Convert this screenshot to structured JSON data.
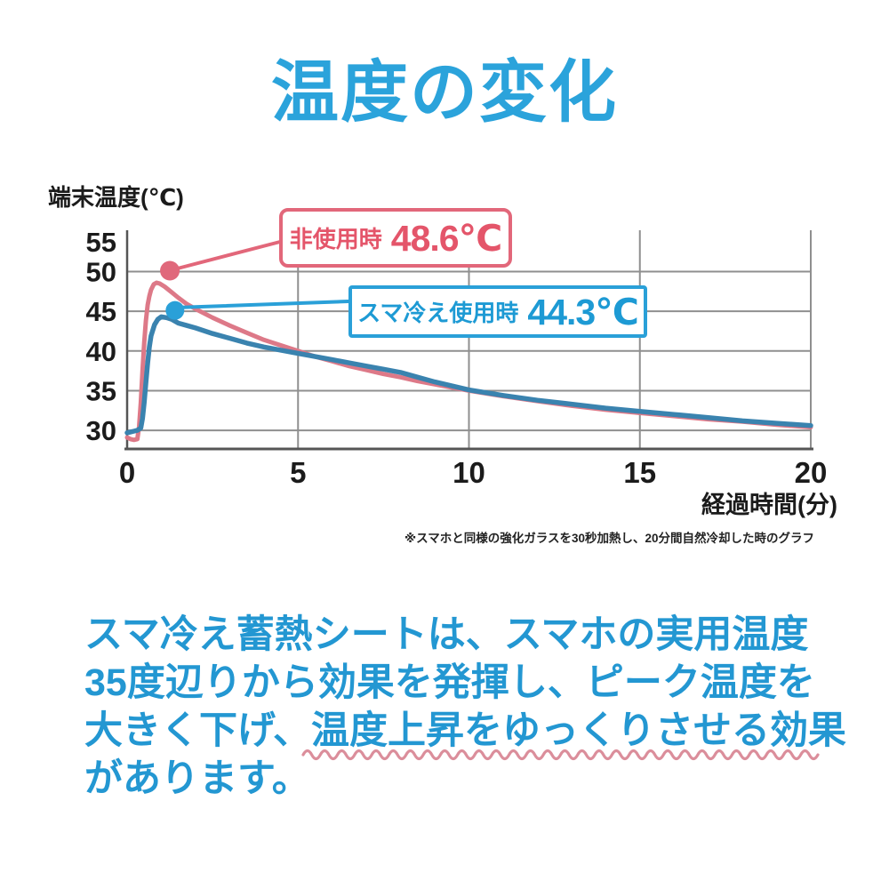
{
  "title": "温度の変化",
  "chart": {
    "y_axis_title": "端末温度(℃)",
    "x_axis_title": "経過時間(分)",
    "footnote": "※スマホと同様の強化ガラスを30秒加熱し、20分間自然冷却した時のグラフ",
    "callouts": [
      {
        "label": "非使用時",
        "value": "48.6℃",
        "color": "#e4556a"
      },
      {
        "label": "スマ冷え使用時",
        "value": "44.3℃",
        "color": "#1d9ad4"
      }
    ]
  },
  "chart_data": {
    "type": "line",
    "title": "温度の変化",
    "xlabel": "経過時間(分)",
    "ylabel": "端末温度(℃)",
    "xlim": [
      0,
      20
    ],
    "ylim": [
      27.9,
      55
    ],
    "x_ticks": [
      0,
      5,
      10,
      15,
      20
    ],
    "y_ticks": [
      55,
      50,
      45,
      40,
      35,
      30
    ],
    "grid": true,
    "legend_position": "callouts-inside-plot",
    "series": [
      {
        "name": "非使用時",
        "peak_label": "48.6℃",
        "peak": 48.6,
        "color": "#dd7988",
        "marker_at": {
          "t": 1.25,
          "temp": 50
        },
        "points": [
          [
            0,
            29.1
          ],
          [
            0.1,
            28.9
          ],
          [
            0.2,
            28.8
          ],
          [
            0.3,
            28.9
          ],
          [
            0.35,
            30.5
          ],
          [
            0.4,
            33.5
          ],
          [
            0.45,
            37.5
          ],
          [
            0.5,
            41
          ],
          [
            0.55,
            43.8
          ],
          [
            0.6,
            45.8
          ],
          [
            0.65,
            46.9
          ],
          [
            0.7,
            47.7
          ],
          [
            0.78,
            48.4
          ],
          [
            0.86,
            48.6
          ],
          [
            0.95,
            48.5
          ],
          [
            1.1,
            48.1
          ],
          [
            1.3,
            47.4
          ],
          [
            1.5,
            46.7
          ],
          [
            1.75,
            45.9
          ],
          [
            2,
            45.3
          ],
          [
            2.5,
            44.2
          ],
          [
            3,
            43.2
          ],
          [
            3.5,
            42.3
          ],
          [
            4,
            41.4
          ],
          [
            4.5,
            40.7
          ],
          [
            5,
            40
          ],
          [
            5.5,
            39.3
          ],
          [
            6,
            38.7
          ],
          [
            6.5,
            38.1
          ],
          [
            7,
            37.6
          ],
          [
            7.5,
            37.1
          ],
          [
            8,
            36.7
          ],
          [
            8.5,
            36.2
          ],
          [
            9,
            35.8
          ],
          [
            9.5,
            35.4
          ],
          [
            10,
            35
          ],
          [
            11,
            34.3
          ],
          [
            12,
            33.7
          ],
          [
            13,
            33.1
          ],
          [
            14,
            32.6
          ],
          [
            15,
            32.2
          ],
          [
            16,
            31.8
          ],
          [
            17,
            31.4
          ],
          [
            18,
            31.1
          ],
          [
            19,
            30.7
          ],
          [
            20,
            30.4
          ]
        ]
      },
      {
        "name": "スマ冷え使用時",
        "peak_label": "44.3℃",
        "peak": 44.3,
        "color": "#3a83af",
        "marker_at": {
          "t": 1.4,
          "temp": 45
        },
        "points": [
          [
            0,
            29.7
          ],
          [
            0.1,
            29.8
          ],
          [
            0.2,
            29.9
          ],
          [
            0.3,
            30
          ],
          [
            0.4,
            30.3
          ],
          [
            0.45,
            31.5
          ],
          [
            0.5,
            33.5
          ],
          [
            0.55,
            36
          ],
          [
            0.6,
            38.5
          ],
          [
            0.65,
            40.5
          ],
          [
            0.7,
            41.9
          ],
          [
            0.8,
            43.3
          ],
          [
            0.9,
            44
          ],
          [
            1,
            44.3
          ],
          [
            1.15,
            44.2
          ],
          [
            1.3,
            44
          ],
          [
            1.5,
            43.5
          ],
          [
            1.75,
            43.2
          ],
          [
            2,
            42.9
          ],
          [
            2.5,
            42.2
          ],
          [
            3,
            41.6
          ],
          [
            3.5,
            41
          ],
          [
            4,
            40.5
          ],
          [
            4.5,
            40.1
          ],
          [
            5,
            39.7
          ],
          [
            5.5,
            39.3
          ],
          [
            6,
            38.9
          ],
          [
            6.5,
            38.5
          ],
          [
            7,
            38.1
          ],
          [
            7.5,
            37.7
          ],
          [
            8,
            37.3
          ],
          [
            8.5,
            36.7
          ],
          [
            9,
            36.1
          ],
          [
            9.5,
            35.6
          ],
          [
            10,
            35.1
          ],
          [
            11,
            34.4
          ],
          [
            12,
            33.8
          ],
          [
            13,
            33.3
          ],
          [
            14,
            32.8
          ],
          [
            15,
            32.4
          ],
          [
            16,
            32
          ],
          [
            17,
            31.6
          ],
          [
            18,
            31.2
          ],
          [
            19,
            30.9
          ],
          [
            20,
            30.6
          ]
        ]
      }
    ]
  },
  "paragraph": {
    "line1": "スマ冷え蓄熱シートは、スマホの実用温度",
    "line2": "35度辺りから効果を発揮し、ピーク温度を",
    "line3_plain": "大きく下げ、",
    "line3_underlined": "温度上昇をゆっくりさせる効果",
    "line4": "があります。"
  },
  "colors": {
    "title_blue": "#2ba3db",
    "body_blue": "#2397d2",
    "series_pink": "#dd7988",
    "series_blue": "#3a83af",
    "callout_pink": "#e4556a",
    "callout_blue": "#1d9ad4",
    "wavy_underline": "#db8e9b",
    "gridline": "#8f8f8f",
    "axis": "#555555"
  }
}
